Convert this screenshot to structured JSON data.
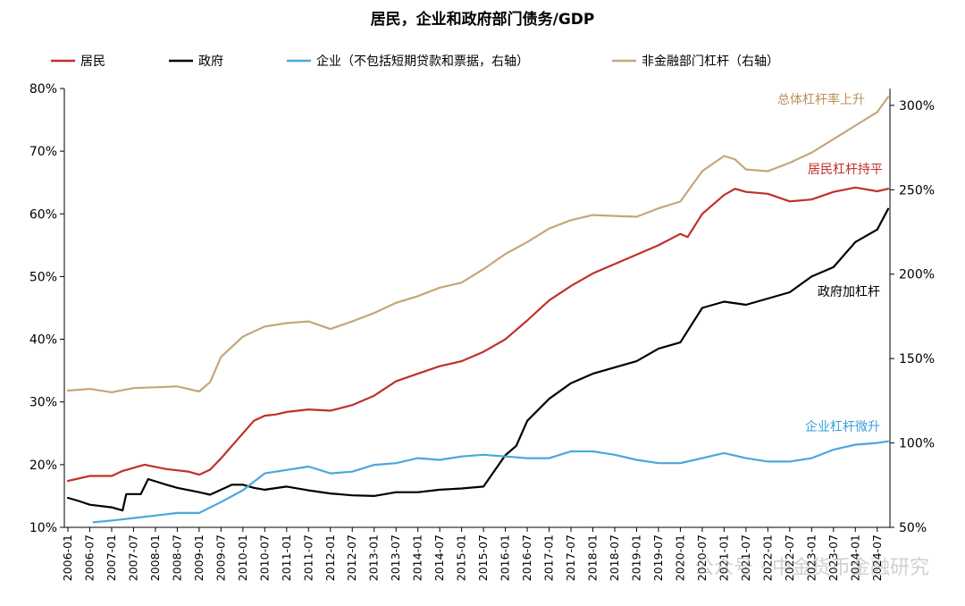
{
  "chart_data": {
    "type": "line",
    "title": "居民，企业和政府部门债务/GDP",
    "x_range": [
      "2006-01",
      "2024-10"
    ],
    "x_tick_labels": [
      "2006-01",
      "2006-07",
      "2007-01",
      "2007-07",
      "2008-01",
      "2008-07",
      "2009-01",
      "2009-07",
      "2010-01",
      "2010-07",
      "2011-01",
      "2011-07",
      "2012-01",
      "2012-07",
      "2013-01",
      "2013-07",
      "2014-01",
      "2014-07",
      "2015-01",
      "2015-07",
      "2016-01",
      "2016-07",
      "2017-01",
      "2017-07",
      "2018-01",
      "2018-07",
      "2019-01",
      "2019-07",
      "2020-01",
      "2020-07",
      "2021-01",
      "2021-07",
      "2022-01",
      "2022-07",
      "2023-01",
      "2023-07",
      "2024-01",
      "2024-07"
    ],
    "y_left": {
      "range": [
        10,
        80
      ],
      "ticks": [
        10,
        20,
        30,
        40,
        50,
        60,
        70,
        80
      ],
      "tick_labels": [
        "10%",
        "20%",
        "30%",
        "40%",
        "50%",
        "60%",
        "70%",
        "80%"
      ]
    },
    "y_right": {
      "range": [
        50,
        310
      ],
      "ticks": [
        50,
        100,
        150,
        200,
        250,
        300
      ],
      "tick_labels": [
        "50%",
        "100%",
        "150%",
        "200%",
        "250%",
        "300%"
      ]
    },
    "grid": false,
    "legend_position": "top",
    "series": [
      {
        "name": "居民",
        "axis": "left",
        "color": "#c0302a",
        "points": [
          [
            "2006-01",
            17.4
          ],
          [
            "2006-07",
            18.2
          ],
          [
            "2007-01",
            18.2
          ],
          [
            "2007-04",
            19.0
          ],
          [
            "2007-10",
            20.0
          ],
          [
            "2008-04",
            19.3
          ],
          [
            "2008-10",
            18.9
          ],
          [
            "2009-01",
            18.4
          ],
          [
            "2009-04",
            19.2
          ],
          [
            "2009-07",
            21.0
          ],
          [
            "2009-10",
            23.0
          ],
          [
            "2010-01",
            25.0
          ],
          [
            "2010-04",
            27.0
          ],
          [
            "2010-07",
            27.8
          ],
          [
            "2010-10",
            28.0
          ],
          [
            "2011-01",
            28.4
          ],
          [
            "2011-07",
            28.8
          ],
          [
            "2012-01",
            28.6
          ],
          [
            "2012-07",
            29.5
          ],
          [
            "2013-01",
            31.0
          ],
          [
            "2013-07",
            33.3
          ],
          [
            "2014-01",
            34.5
          ],
          [
            "2014-07",
            35.7
          ],
          [
            "2015-01",
            36.5
          ],
          [
            "2015-07",
            38.0
          ],
          [
            "2016-01",
            40.0
          ],
          [
            "2016-07",
            43.0
          ],
          [
            "2017-01",
            46.2
          ],
          [
            "2017-07",
            48.5
          ],
          [
            "2018-01",
            50.5
          ],
          [
            "2018-07",
            52.0
          ],
          [
            "2019-01",
            53.5
          ],
          [
            "2019-07",
            55.0
          ],
          [
            "2020-01",
            56.8
          ],
          [
            "2020-03",
            56.3
          ],
          [
            "2020-07",
            60.0
          ],
          [
            "2021-01",
            63.0
          ],
          [
            "2021-04",
            64.0
          ],
          [
            "2021-07",
            63.5
          ],
          [
            "2022-01",
            63.2
          ],
          [
            "2022-07",
            62.0
          ],
          [
            "2023-01",
            62.3
          ],
          [
            "2023-07",
            63.5
          ],
          [
            "2024-01",
            64.2
          ],
          [
            "2024-07",
            63.6
          ],
          [
            "2024-10",
            64.0
          ]
        ]
      },
      {
        "name": "政府",
        "axis": "left",
        "color": "#000000",
        "points": [
          [
            "2006-01",
            14.7
          ],
          [
            "2006-04",
            14.2
          ],
          [
            "2006-07",
            13.6
          ],
          [
            "2007-01",
            13.2
          ],
          [
            "2007-04",
            12.7
          ],
          [
            "2007-05",
            15.3
          ],
          [
            "2007-09",
            15.3
          ],
          [
            "2007-11",
            17.7
          ],
          [
            "2008-04",
            16.8
          ],
          [
            "2008-07",
            16.3
          ],
          [
            "2009-01",
            15.6
          ],
          [
            "2009-04",
            15.2
          ],
          [
            "2009-07",
            16.0
          ],
          [
            "2009-10",
            16.8
          ],
          [
            "2010-01",
            16.8
          ],
          [
            "2010-04",
            16.3
          ],
          [
            "2010-07",
            16.0
          ],
          [
            "2011-01",
            16.5
          ],
          [
            "2011-07",
            15.9
          ],
          [
            "2012-01",
            15.4
          ],
          [
            "2012-07",
            15.1
          ],
          [
            "2013-01",
            15.0
          ],
          [
            "2013-07",
            15.6
          ],
          [
            "2014-01",
            15.6
          ],
          [
            "2014-07",
            16.0
          ],
          [
            "2015-01",
            16.2
          ],
          [
            "2015-07",
            16.5
          ],
          [
            "2016-01",
            21.5
          ],
          [
            "2016-04",
            23.0
          ],
          [
            "2016-07",
            27.0
          ],
          [
            "2017-01",
            30.5
          ],
          [
            "2017-07",
            33.0
          ],
          [
            "2018-01",
            34.5
          ],
          [
            "2018-07",
            35.5
          ],
          [
            "2019-01",
            36.5
          ],
          [
            "2019-07",
            38.5
          ],
          [
            "2020-01",
            39.5
          ],
          [
            "2020-07",
            45.0
          ],
          [
            "2021-01",
            46.0
          ],
          [
            "2021-07",
            45.5
          ],
          [
            "2022-01",
            46.5
          ],
          [
            "2022-07",
            47.5
          ],
          [
            "2023-01",
            50.0
          ],
          [
            "2023-07",
            51.5
          ],
          [
            "2024-01",
            55.5
          ],
          [
            "2024-07",
            57.5
          ],
          [
            "2024-10",
            60.8
          ]
        ]
      },
      {
        "name": "企业（不包括短期贷款和票据，右轴）",
        "axis": "right",
        "color": "#4aa8dc",
        "points": [
          [
            "2006-08",
            53.0
          ],
          [
            "2007-01",
            54.0
          ],
          [
            "2007-07",
            55.5
          ],
          [
            "2008-01",
            57.0
          ],
          [
            "2008-07",
            58.5
          ],
          [
            "2009-01",
            58.5
          ],
          [
            "2009-07",
            65.0
          ],
          [
            "2010-01",
            72.0
          ],
          [
            "2010-07",
            82.0
          ],
          [
            "2011-01",
            84.0
          ],
          [
            "2011-07",
            86.0
          ],
          [
            "2012-01",
            82.0
          ],
          [
            "2012-07",
            83.0
          ],
          [
            "2013-01",
            87.0
          ],
          [
            "2013-07",
            88.0
          ],
          [
            "2014-01",
            91.0
          ],
          [
            "2014-07",
            90.0
          ],
          [
            "2015-01",
            92.0
          ],
          [
            "2015-07",
            93.0
          ],
          [
            "2016-01",
            92.0
          ],
          [
            "2016-07",
            91.0
          ],
          [
            "2017-01",
            91.0
          ],
          [
            "2017-07",
            95.0
          ],
          [
            "2018-01",
            95.0
          ],
          [
            "2018-07",
            93.0
          ],
          [
            "2019-01",
            90.0
          ],
          [
            "2019-07",
            88.0
          ],
          [
            "2020-01",
            88.0
          ],
          [
            "2020-07",
            91.0
          ],
          [
            "2021-01",
            94.0
          ],
          [
            "2021-07",
            91.0
          ],
          [
            "2022-01",
            89.0
          ],
          [
            "2022-07",
            89.0
          ],
          [
            "2023-01",
            91.0
          ],
          [
            "2023-07",
            96.0
          ],
          [
            "2024-01",
            99.0
          ],
          [
            "2024-07",
            100.0
          ],
          [
            "2024-10",
            101.0
          ]
        ]
      },
      {
        "name": "非金融部门杠杆（右轴）",
        "axis": "right",
        "color": "#c4a77a",
        "points": [
          [
            "2006-01",
            131.0
          ],
          [
            "2006-07",
            132.0
          ],
          [
            "2007-01",
            130.0
          ],
          [
            "2007-07",
            132.5
          ],
          [
            "2008-01",
            133.0
          ],
          [
            "2008-07",
            133.5
          ],
          [
            "2009-01",
            130.5
          ],
          [
            "2009-04",
            136.0
          ],
          [
            "2009-07",
            151.0
          ],
          [
            "2009-10",
            157.0
          ],
          [
            "2010-01",
            163.0
          ],
          [
            "2010-07",
            169.0
          ],
          [
            "2011-01",
            171.0
          ],
          [
            "2011-07",
            172.0
          ],
          [
            "2012-01",
            167.5
          ],
          [
            "2012-07",
            172.0
          ],
          [
            "2013-01",
            177.0
          ],
          [
            "2013-07",
            183.0
          ],
          [
            "2014-01",
            187.0
          ],
          [
            "2014-07",
            192.0
          ],
          [
            "2015-01",
            195.0
          ],
          [
            "2015-07",
            203.0
          ],
          [
            "2016-01",
            212.0
          ],
          [
            "2016-07",
            219.0
          ],
          [
            "2017-01",
            227.0
          ],
          [
            "2017-07",
            232.0
          ],
          [
            "2018-01",
            235.0
          ],
          [
            "2018-07",
            234.5
          ],
          [
            "2019-01",
            234.0
          ],
          [
            "2019-07",
            239.0
          ],
          [
            "2020-01",
            243.0
          ],
          [
            "2020-07",
            261.0
          ],
          [
            "2021-01",
            270.0
          ],
          [
            "2021-04",
            268.0
          ],
          [
            "2021-07",
            262.0
          ],
          [
            "2022-01",
            261.0
          ],
          [
            "2022-07",
            266.0
          ],
          [
            "2023-01",
            272.0
          ],
          [
            "2023-07",
            280.0
          ],
          [
            "2024-01",
            288.0
          ],
          [
            "2024-07",
            296.0
          ],
          [
            "2024-10",
            305.0
          ]
        ]
      }
    ],
    "annotations": [
      {
        "text": "总体杠杆率上升",
        "color": "#b8925a"
      },
      {
        "text": "居民杠杆持平",
        "color": "#c0302a"
      },
      {
        "text": "政府加杠杆",
        "color": "#000000"
      },
      {
        "text": "企业杠杆微升",
        "color": "#3a9fdc"
      }
    ]
  },
  "watermark": "公众号 · 中金货币金融研究"
}
